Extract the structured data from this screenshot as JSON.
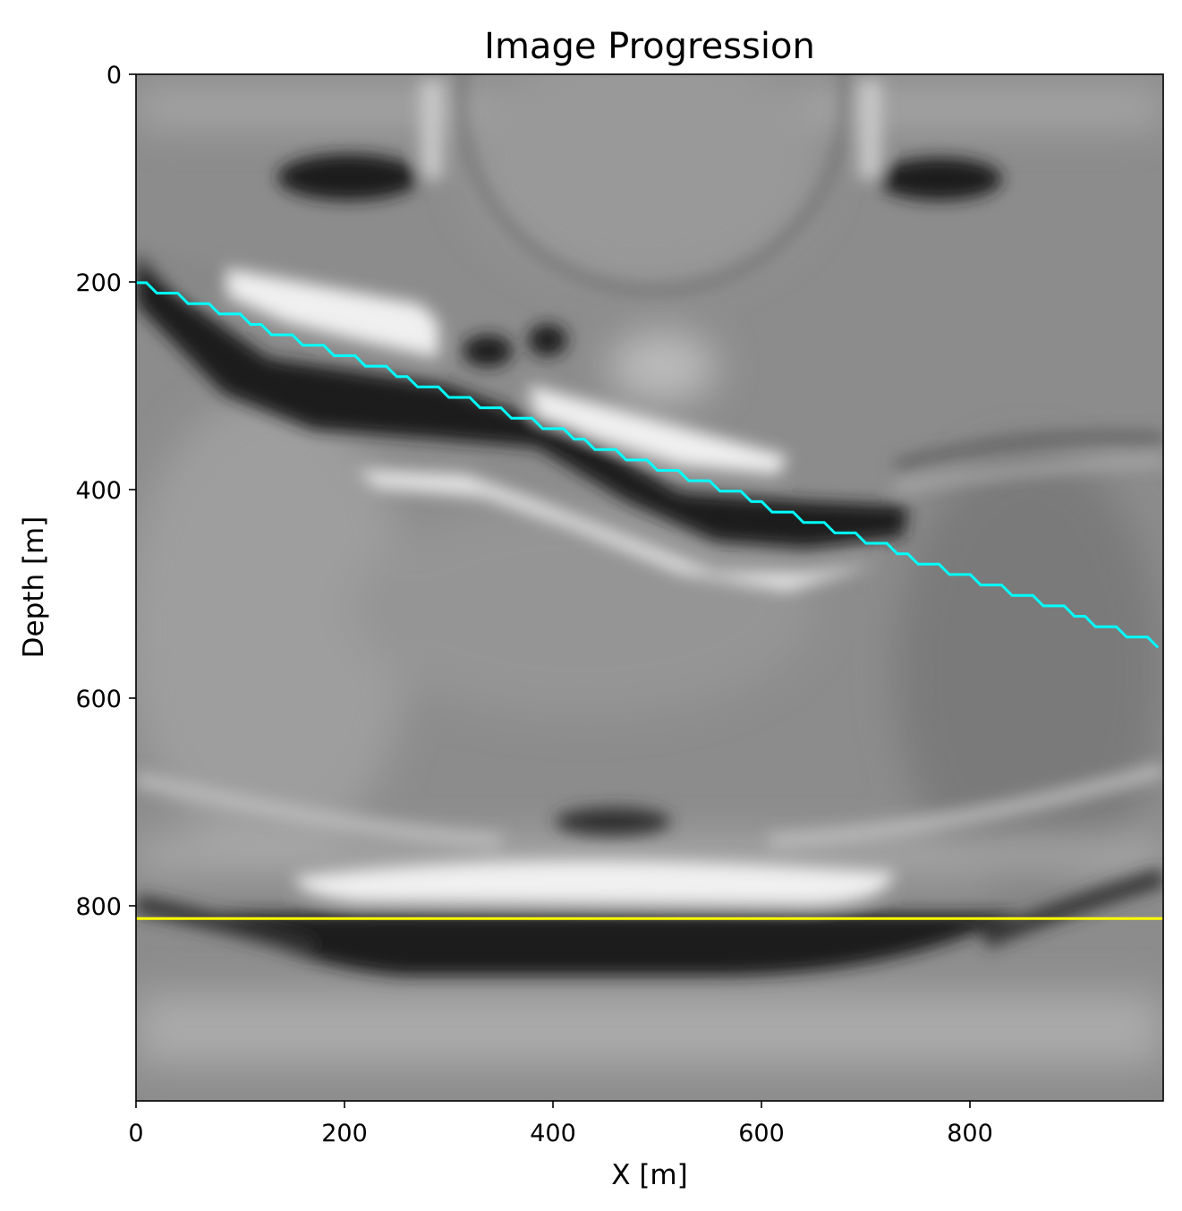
{
  "chart_data": {
    "type": "line",
    "title": "Image Progression",
    "xlabel": "X [m]",
    "ylabel": "Depth [m]",
    "xlim": [
      0,
      985
    ],
    "ylim": [
      985,
      0
    ],
    "xticks": [
      0,
      200,
      400,
      600,
      800
    ],
    "yticks": [
      0,
      200,
      400,
      600,
      800
    ],
    "background": "grayscale seismic image",
    "grid": false,
    "series": [
      {
        "name": "cyan horizon",
        "color": "#00ffff",
        "x_start": 0,
        "x_step": 10,
        "y": [
          200,
          200,
          210,
          210,
          210,
          220,
          220,
          220,
          230,
          230,
          230,
          240,
          240,
          250,
          250,
          250,
          260,
          260,
          260,
          270,
          270,
          270,
          280,
          280,
          280,
          290,
          290,
          300,
          300,
          300,
          310,
          310,
          310,
          320,
          320,
          320,
          330,
          330,
          330,
          340,
          340,
          340,
          350,
          350,
          360,
          360,
          360,
          370,
          370,
          370,
          380,
          380,
          380,
          390,
          390,
          390,
          400,
          400,
          400,
          410,
          410,
          420,
          420,
          420,
          430,
          430,
          430,
          440,
          440,
          440,
          450,
          450,
          450,
          460,
          460,
          470,
          470,
          470,
          480,
          480,
          480,
          490,
          490,
          490,
          500,
          500,
          500,
          510,
          510,
          510,
          520,
          520,
          530,
          530,
          530,
          540,
          540,
          540,
          550
        ]
      },
      {
        "name": "yellow horizon",
        "color": "#ffff00",
        "x": [
          0,
          985
        ],
        "y": [
          810,
          810
        ]
      }
    ]
  }
}
